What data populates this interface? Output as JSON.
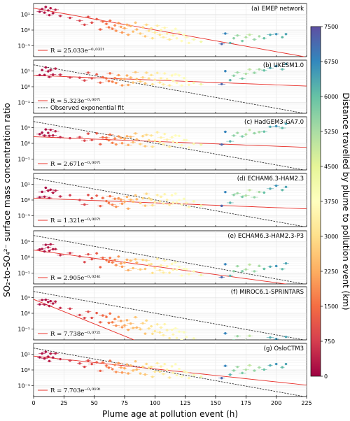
{
  "chart_data": {
    "type": "scatter",
    "xlabel": "Plume age at pollution event (h)",
    "ylabel": "SO₂-to-SO₄²⁻ surface mass concentration ratio",
    "xlim": [
      0,
      225
    ],
    "ylim": [
      0.02,
      50
    ],
    "yscale": "log",
    "xticks": [
      0,
      25,
      50,
      75,
      100,
      125,
      150,
      175,
      200,
      225
    ],
    "yticks": [
      {
        "value": 0.1,
        "label": "10⁻¹"
      },
      {
        "value": 1,
        "label": "10⁰"
      },
      {
        "value": 10,
        "label": "10¹"
      }
    ],
    "grid": true,
    "colorbar": {
      "label": "Distance travelled by plume to pollution event (km)",
      "min": 0,
      "max": 7500,
      "ticks": [
        0,
        750,
        1500,
        2250,
        3000,
        3750,
        4500,
        5250,
        6000,
        6750,
        7500
      ],
      "colormap": [
        "#9e0142",
        "#d53e4f",
        "#f46d43",
        "#fdae61",
        "#fee08b",
        "#ffffbf",
        "#e6f598",
        "#abdda4",
        "#66c2a5",
        "#3288bd",
        "#5e4fa2"
      ]
    },
    "legend": {
      "placement": "lower-left",
      "fit_line_color": "#e8302a",
      "observed_line_color": "#333333",
      "observed_label": "Observed exponential fit"
    },
    "observed_fit": {
      "a": 25.033,
      "b": 0.032
    },
    "obs_points": [
      {
        "x": 5,
        "y": 15,
        "d": 150
      },
      {
        "x": 7,
        "y": 22,
        "d": 200
      },
      {
        "x": 9,
        "y": 13,
        "d": 250
      },
      {
        "x": 10,
        "y": 30,
        "d": 200
      },
      {
        "x": 12,
        "y": 18,
        "d": 300
      },
      {
        "x": 13,
        "y": 9,
        "d": 350
      },
      {
        "x": 14,
        "y": 25,
        "d": 280
      },
      {
        "x": 16,
        "y": 12,
        "d": 300
      },
      {
        "x": 18,
        "y": 20,
        "d": 400
      },
      {
        "x": 22,
        "y": 8,
        "d": 500
      },
      {
        "x": 30,
        "y": 6,
        "d": 700
      },
      {
        "x": 38,
        "y": 4,
        "d": 800
      },
      {
        "x": 42,
        "y": 2.2,
        "d": 900
      },
      {
        "x": 45,
        "y": 7,
        "d": 1000
      },
      {
        "x": 48,
        "y": 3,
        "d": 1000
      },
      {
        "x": 52,
        "y": 5,
        "d": 1200
      },
      {
        "x": 55,
        "y": 1.1,
        "d": 1300
      },
      {
        "x": 57,
        "y": 3.5,
        "d": 1400
      },
      {
        "x": 60,
        "y": 2.5,
        "d": 1500
      },
      {
        "x": 62,
        "y": 1.5,
        "d": 1600
      },
      {
        "x": 63,
        "y": 4,
        "d": 1500
      },
      {
        "x": 65,
        "y": 1.2,
        "d": 1700
      },
      {
        "x": 67,
        "y": 2,
        "d": 1800
      },
      {
        "x": 68,
        "y": 0.9,
        "d": 1900
      },
      {
        "x": 70,
        "y": 2.8,
        "d": 2000
      },
      {
        "x": 72,
        "y": 1.6,
        "d": 2100
      },
      {
        "x": 73,
        "y": 0.7,
        "d": 2000
      },
      {
        "x": 75,
        "y": 1.3,
        "d": 2200
      },
      {
        "x": 77,
        "y": 2.2,
        "d": 2300
      },
      {
        "x": 78,
        "y": 0.5,
        "d": 2200
      },
      {
        "x": 80,
        "y": 1.8,
        "d": 2400
      },
      {
        "x": 82,
        "y": 0.8,
        "d": 2500
      },
      {
        "x": 84,
        "y": 3,
        "d": 2600
      },
      {
        "x": 85,
        "y": 1.1,
        "d": 2400
      },
      {
        "x": 88,
        "y": 0.6,
        "d": 2700
      },
      {
        "x": 90,
        "y": 1.5,
        "d": 2800
      },
      {
        "x": 92,
        "y": 0.4,
        "d": 2600
      },
      {
        "x": 93,
        "y": 2.2,
        "d": 2900
      },
      {
        "x": 95,
        "y": 0.9,
        "d": 3000
      },
      {
        "x": 97,
        "y": 1.3,
        "d": 3100
      },
      {
        "x": 98,
        "y": 0.3,
        "d": 3000
      },
      {
        "x": 100,
        "y": 0.7,
        "d": 3200
      },
      {
        "x": 102,
        "y": 1.9,
        "d": 3300
      },
      {
        "x": 104,
        "y": 0.5,
        "d": 3100
      },
      {
        "x": 105,
        "y": 1.0,
        "d": 3400
      },
      {
        "x": 107,
        "y": 0.35,
        "d": 3300
      },
      {
        "x": 108,
        "y": 1.4,
        "d": 3500
      },
      {
        "x": 110,
        "y": 0.6,
        "d": 3400
      },
      {
        "x": 112,
        "y": 0.25,
        "d": 3200
      },
      {
        "x": 114,
        "y": 0.9,
        "d": 3600
      },
      {
        "x": 115,
        "y": 0.45,
        "d": 3500
      },
      {
        "x": 117,
        "y": 1.2,
        "d": 3700
      },
      {
        "x": 118,
        "y": 0.3,
        "d": 3600
      },
      {
        "x": 120,
        "y": 0.7,
        "d": 3800
      },
      {
        "x": 122,
        "y": 0.2,
        "d": 3700
      },
      {
        "x": 124,
        "y": 0.5,
        "d": 3900
      },
      {
        "x": 126,
        "y": 0.35,
        "d": 3800
      },
      {
        "x": 128,
        "y": 0.15,
        "d": 3600
      },
      {
        "x": 132,
        "y": 0.25,
        "d": 4000
      },
      {
        "x": 138,
        "y": 0.18,
        "d": 4200
      },
      {
        "x": 155,
        "y": 0.13,
        "d": 7200
      },
      {
        "x": 158,
        "y": 0.6,
        "d": 6800
      },
      {
        "x": 162,
        "y": 0.15,
        "d": 6200
      },
      {
        "x": 165,
        "y": 0.3,
        "d": 5600
      },
      {
        "x": 168,
        "y": 0.45,
        "d": 5400
      },
      {
        "x": 172,
        "y": 0.2,
        "d": 5800
      },
      {
        "x": 175,
        "y": 0.35,
        "d": 5200
      },
      {
        "x": 178,
        "y": 0.5,
        "d": 5000
      },
      {
        "x": 182,
        "y": 0.25,
        "d": 5500
      },
      {
        "x": 186,
        "y": 0.4,
        "d": 5300
      },
      {
        "x": 190,
        "y": 0.3,
        "d": 6000
      },
      {
        "x": 195,
        "y": 0.5,
        "d": 6300
      },
      {
        "x": 200,
        "y": 0.55,
        "d": 6600
      },
      {
        "x": 205,
        "y": 0.35,
        "d": 6100
      },
      {
        "x": 208,
        "y": 0.55,
        "d": 6400
      }
    ],
    "panels": [
      {
        "label": "(a) EMEP network",
        "fit": {
          "a": 25.033,
          "b": 0.032
        },
        "fit_text": "R = 25.033e⁻⁰·⁰³²ᵗ",
        "show_observed": false,
        "show_observed_legend": false,
        "scale": 1.0,
        "slope": 0.0,
        "scatter": 0.0
      },
      {
        "label": "(b) UKESM1.0",
        "fit": {
          "a": 5.323,
          "b": 0.007
        },
        "fit_text": "R = 5.323e⁻⁰·⁰⁰⁷ᵗ",
        "show_observed": true,
        "show_observed_legend": true,
        "scale": 0.4,
        "slope": 0.023,
        "scatter": 0.25
      },
      {
        "label": "(c) HadGEM3-GA7.0",
        "fit": {
          "a": 2.671,
          "b": 0.007
        },
        "fit_text": "R = 2.671e⁻⁰·⁰⁰⁷ᵗ",
        "show_observed": true,
        "show_observed_legend": false,
        "scale": 0.22,
        "slope": 0.023,
        "scatter": 0.22
      },
      {
        "label": "(d) ECHAM6.3-HAM2.3",
        "fit": {
          "a": 1.321,
          "b": 0.007
        },
        "fit_text": "R = 1.321e⁻⁰·⁰⁰⁷ᵗ",
        "show_observed": true,
        "show_observed_legend": false,
        "scale": 0.12,
        "slope": 0.023,
        "scatter": 0.35
      },
      {
        "label": "(e) ECHAM6.3-HAM2.3-P3",
        "fit": {
          "a": 2.905,
          "b": 0.024
        },
        "fit_text": "R = 2.905e⁻⁰·⁰²⁴ᵗ",
        "show_observed": true,
        "show_observed_legend": false,
        "scale": 0.2,
        "slope": 0.006,
        "scatter": 0.3
      },
      {
        "label": "(f) MIROC6.1-SPRINTARS",
        "fit": {
          "a": 7.738,
          "b": 0.072
        },
        "fit_text": "R = 7.738e⁻⁰·⁰⁷²ᵗ",
        "show_observed": true,
        "show_observed_legend": false,
        "scale": 0.35,
        "slope": -0.01,
        "scatter": 0.3
      },
      {
        "label": "(g) OsloCTM3",
        "fit": {
          "a": 7.703,
          "b": 0.019
        },
        "fit_text": "R = 7.703e⁻⁰·⁰¹⁹ᵗ",
        "show_observed": true,
        "show_observed_legend": false,
        "scale": 0.4,
        "slope": 0.012,
        "scatter": 0.2
      }
    ]
  }
}
